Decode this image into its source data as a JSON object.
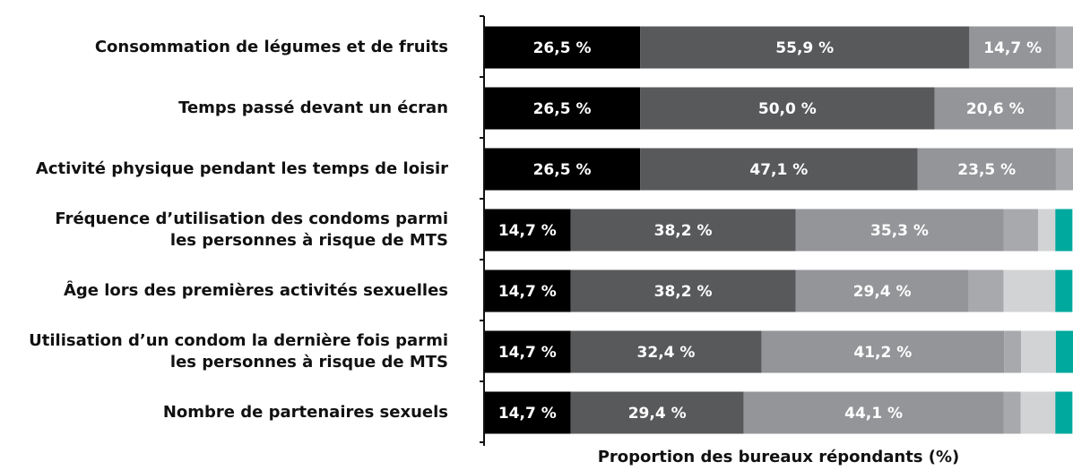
{
  "chart_data": {
    "type": "stacked-bar-horizontal",
    "categories": [
      "Consommation de légumes et de fruits",
      "Temps passé devant un écran",
      "Activité physique pendant les temps de loisir",
      "Fréquence d’utilisation des condoms parmi\nles personnes à risque de MTS",
      "Âge lors des premières activités sexuelles",
      "Utilisation d’un condom la dernière fois parmi\nles personnes à risque de MTS",
      "Nombre de partenaires sexuels"
    ],
    "xlabel": "Proportion des bureaux répondants (%)",
    "xlim": [
      0,
      100
    ],
    "series": [
      {
        "color": "#000000",
        "values": [
          26.5,
          26.5,
          26.5,
          14.7,
          14.7,
          14.7,
          14.7
        ],
        "value_labels": [
          "26,5 %",
          "26,5 %",
          "26,5 %",
          "14,7 %",
          "14,7 %",
          "14,7 %",
          "14,7 %"
        ]
      },
      {
        "color": "#58595b",
        "values": [
          55.9,
          50.0,
          47.1,
          38.2,
          38.2,
          32.4,
          29.4
        ],
        "value_labels": [
          "55,9 %",
          "50,0 %",
          "47,1 %",
          "38,2 %",
          "38,2 %",
          "32,4 %",
          "29,4 %"
        ]
      },
      {
        "color": "#939598",
        "values": [
          14.7,
          20.6,
          23.5,
          35.3,
          29.4,
          41.2,
          44.1
        ],
        "value_labels": [
          "14,7 %",
          "20,6 %",
          "23,5 %",
          "35,3 %",
          "29,4 %",
          "41,2 %",
          "44,1 %"
        ]
      },
      {
        "color": "#a7a9ac",
        "values": [
          2.9,
          2.9,
          2.9,
          5.9,
          5.9,
          2.9,
          2.9
        ]
      },
      {
        "color": "#d1d3d4",
        "values": [
          0,
          0,
          0,
          2.9,
          8.8,
          5.9,
          5.9
        ]
      },
      {
        "color": "#00a99d",
        "values": [
          0,
          0,
          0,
          2.9,
          2.9,
          2.9,
          2.9
        ]
      }
    ]
  }
}
